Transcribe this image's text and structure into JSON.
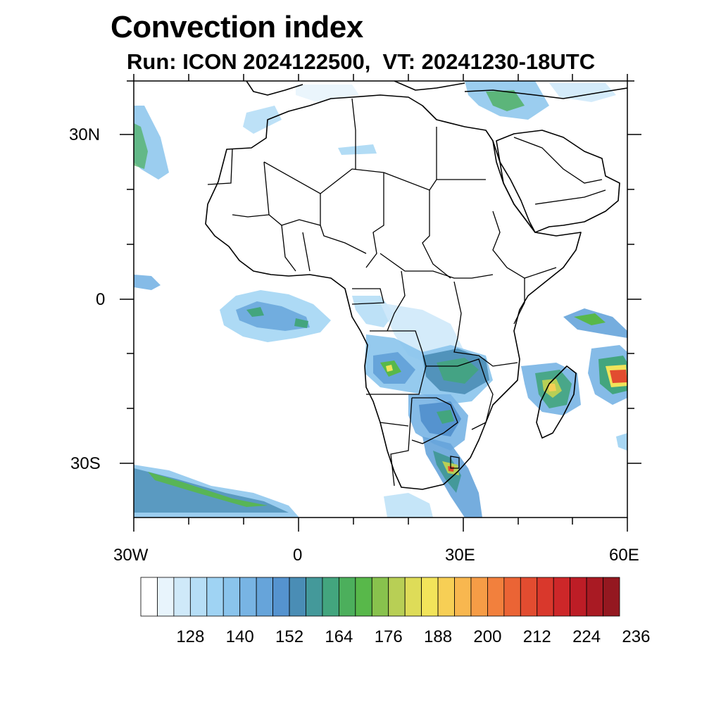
{
  "title": "Convection index",
  "subtitle": "Run: ICON 2024122500,  VT: 20241230-18UTC",
  "axes": {
    "lat_labels": [
      "30N",
      "0",
      "30S"
    ],
    "lon_labels": [
      "30W",
      "0",
      "30E",
      "60E"
    ]
  },
  "colorbar": {
    "labels": [
      "128",
      "140",
      "152",
      "164",
      "176",
      "188",
      "200",
      "212",
      "224",
      "236"
    ],
    "colors": [
      "#ffffff",
      "#e8f4fc",
      "#cfe9f9",
      "#b6def6",
      "#9fd3f3",
      "#8ac4ec",
      "#78b4e4",
      "#66a4da",
      "#5593cf",
      "#4a8db5",
      "#44999a",
      "#43a57e",
      "#4caf5c",
      "#58b84a",
      "#88c24d",
      "#b8cf55",
      "#dedc58",
      "#f2e45a",
      "#f7cf55",
      "#f8b74f",
      "#f69c46",
      "#f2803d",
      "#eb6435",
      "#e24c30",
      "#d9382c",
      "#cd2729",
      "#bd1d26",
      "#a91a23",
      "#941820"
    ]
  },
  "map": {
    "coastline_color": "#000000",
    "border_color": "#000000"
  }
}
